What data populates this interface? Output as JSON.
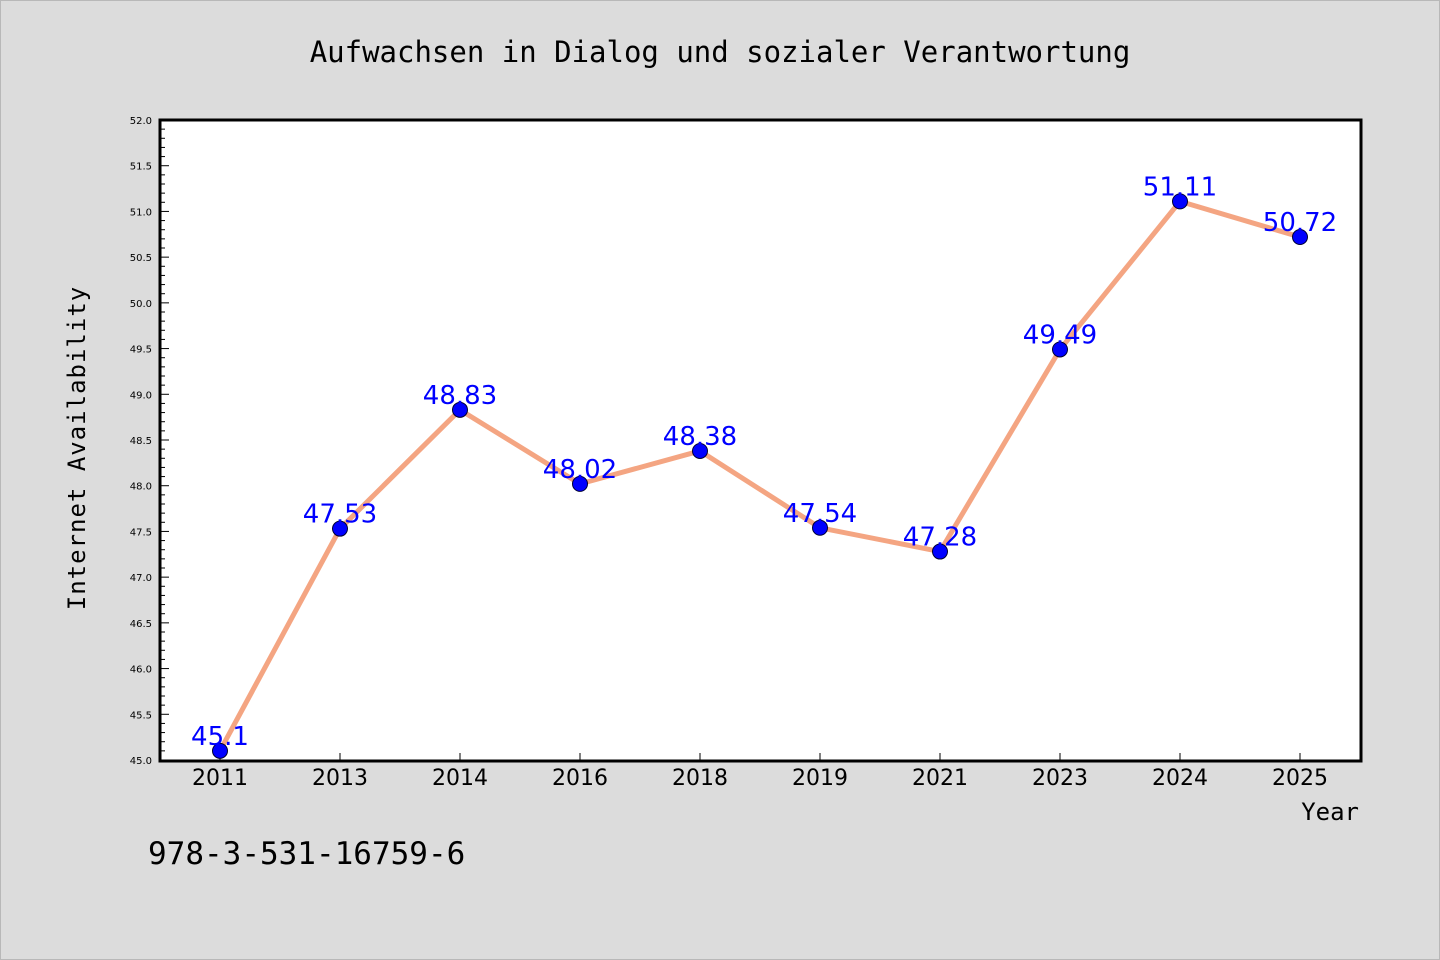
{
  "chart_data": {
    "type": "line",
    "title": "Aufwachsen in Dialog und sozialer Verantwortung",
    "xlabel": "Year",
    "ylabel": "Internet Availability",
    "categories": [
      "2011",
      "2013",
      "2014",
      "2016",
      "2018",
      "2019",
      "2021",
      "2023",
      "2024",
      "2025"
    ],
    "series": [
      {
        "values": [
          45.1,
          47.53,
          48.83,
          48.02,
          48.38,
          47.54,
          47.28,
          49.49,
          51.11,
          50.72
        ],
        "data_labels": [
          "45.1",
          "47.53",
          "48.83",
          "48.02",
          "48.38",
          "47.54",
          "47.28",
          "49.49",
          "51.11",
          "50.72"
        ],
        "line_color": "#f4a582",
        "marker_color": "#0000ff",
        "label_color": "#0000ff"
      }
    ],
    "ylim": [
      45.0,
      52.0
    ],
    "yticks": [
      "45.0",
      "45.5",
      "46.0",
      "46.5",
      "47.0",
      "47.5",
      "48.0",
      "48.5",
      "49.0",
      "49.5",
      "50.0",
      "50.5",
      "51.0",
      "51.5",
      "52.0"
    ],
    "grid": false,
    "legend": "none"
  },
  "footer_text": "978-3-531-16759-6",
  "colors": {
    "background": "#dcdcdc",
    "plot_background": "#ffffff",
    "axis": "#000000"
  }
}
